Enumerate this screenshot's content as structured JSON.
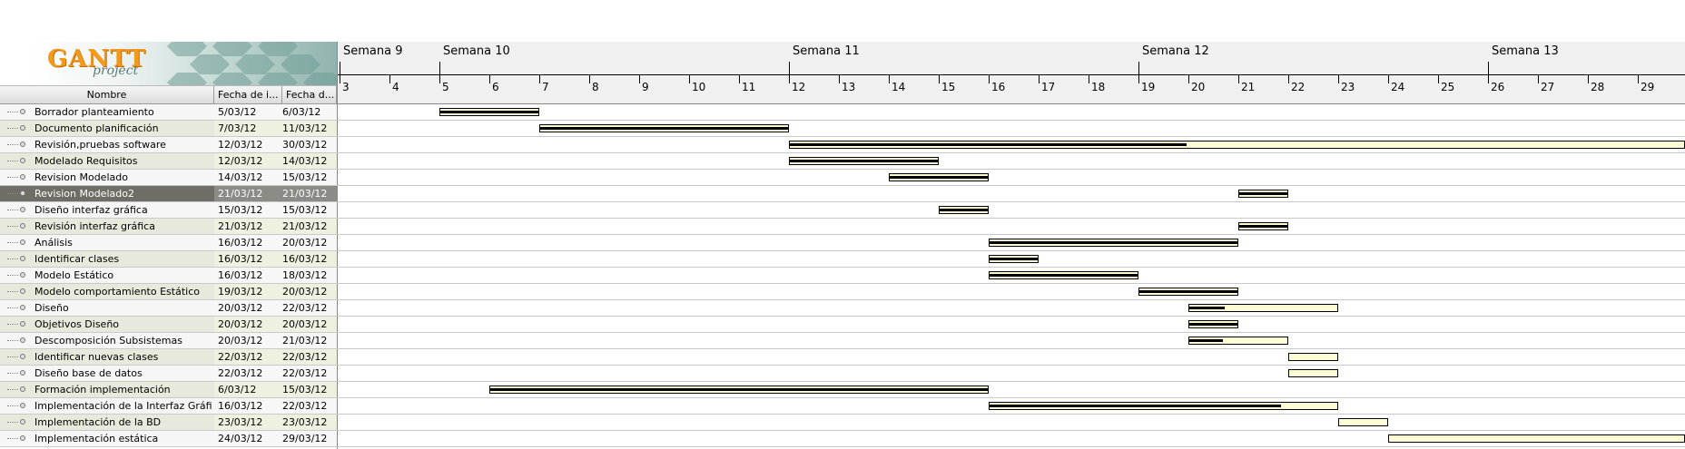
{
  "logo": {
    "title": "GANTT",
    "subtitle": "project"
  },
  "columns": {
    "name": "Nombre",
    "start": "Fecha de i...",
    "end": "Fecha d..."
  },
  "timeline": {
    "weeks": [
      {
        "label": "Semana 9",
        "day": 3
      },
      {
        "label": "Semana 10",
        "day": 5
      },
      {
        "label": "Semana 11",
        "day": 12
      },
      {
        "label": "Semana 12",
        "day": 19
      },
      {
        "label": "Semana 13",
        "day": 26
      }
    ],
    "days": [
      "3",
      "4",
      "5",
      "6",
      "7",
      "8",
      "9",
      "10",
      "11",
      "12",
      "13",
      "14",
      "15",
      "16",
      "17",
      "18",
      "19",
      "20",
      "21",
      "22",
      "23",
      "24",
      "25",
      "26",
      "27",
      "28",
      "29"
    ],
    "day_numbers": [
      3,
      4,
      5,
      6,
      7,
      8,
      9,
      10,
      11,
      12,
      13,
      14,
      15,
      16,
      17,
      18,
      19,
      20,
      21,
      22,
      23,
      24,
      25,
      26,
      27,
      28,
      29
    ]
  },
  "tasks": [
    {
      "name": "Borrador planteamiento",
      "start": "5/03/12",
      "end": "6/03/12",
      "s": 5,
      "e": 7,
      "progress": 1.0
    },
    {
      "name": "Documento planificación",
      "start": "7/03/12",
      "end": "11/03/12",
      "s": 7,
      "e": 12,
      "progress": 1.0
    },
    {
      "name": "Revisión,pruebas software",
      "start": "12/03/12",
      "end": "30/03/12",
      "s": 12,
      "e": 31,
      "progress": 0.42
    },
    {
      "name": "Modelado Requisitos",
      "start": "12/03/12",
      "end": "14/03/12",
      "s": 12,
      "e": 15,
      "progress": 1.0
    },
    {
      "name": "Revision Modelado",
      "start": "14/03/12",
      "end": "15/03/12",
      "s": 14,
      "e": 16,
      "progress": 1.0
    },
    {
      "name": "Revision Modelado2",
      "start": "21/03/12",
      "end": "21/03/12",
      "s": 21,
      "e": 22,
      "progress": 1.0,
      "selected": true
    },
    {
      "name": "Diseño interfaz gráfica",
      "start": "15/03/12",
      "end": "15/03/12",
      "s": 15,
      "e": 16,
      "progress": 1.0
    },
    {
      "name": "Revisión interfaz gráfica",
      "start": "21/03/12",
      "end": "21/03/12",
      "s": 21,
      "e": 22,
      "progress": 1.0
    },
    {
      "name": "Análisis",
      "start": "16/03/12",
      "end": "20/03/12",
      "s": 16,
      "e": 21,
      "progress": 1.0
    },
    {
      "name": "Identificar clases",
      "start": "16/03/12",
      "end": "16/03/12",
      "s": 16,
      "e": 17,
      "progress": 1.0
    },
    {
      "name": "Modelo Estático",
      "start": "16/03/12",
      "end": "18/03/12",
      "s": 16,
      "e": 19,
      "progress": 1.0
    },
    {
      "name": "Modelo comportamiento Estático",
      "start": "19/03/12",
      "end": "20/03/12",
      "s": 19,
      "e": 21,
      "progress": 1.0
    },
    {
      "name": "Diseño",
      "start": "20/03/12",
      "end": "22/03/12",
      "s": 20,
      "e": 23,
      "progress": 0.25
    },
    {
      "name": "Objetivos Diseño",
      "start": "20/03/12",
      "end": "20/03/12",
      "s": 20,
      "e": 21,
      "progress": 1.0
    },
    {
      "name": "Descomposición Subsistemas",
      "start": "20/03/12",
      "end": "21/03/12",
      "s": 20,
      "e": 22,
      "progress": 0.35
    },
    {
      "name": "Identificar nuevas clases",
      "start": "22/03/12",
      "end": "22/03/12",
      "s": 22,
      "e": 23,
      "progress": 0.0
    },
    {
      "name": "Diseño base de datos",
      "start": "22/03/12",
      "end": "22/03/12",
      "s": 22,
      "e": 23,
      "progress": 0.0
    },
    {
      "name": "Formación implementación",
      "start": "6/03/12",
      "end": "15/03/12",
      "s": 6,
      "e": 16,
      "progress": 1.0
    },
    {
      "name": "Implementación de la Interfaz Gráfica",
      "start": "16/03/12",
      "end": "22/03/12",
      "s": 16,
      "e": 23,
      "progress": 0.84
    },
    {
      "name": "Implementación de la BD",
      "start": "23/03/12",
      "end": "23/03/12",
      "s": 23,
      "e": 24,
      "progress": 0.0
    },
    {
      "name": "Implementación estática",
      "start": "24/03/12",
      "end": "29/03/12",
      "s": 24,
      "e": 30,
      "progress": 0.0
    }
  ]
}
